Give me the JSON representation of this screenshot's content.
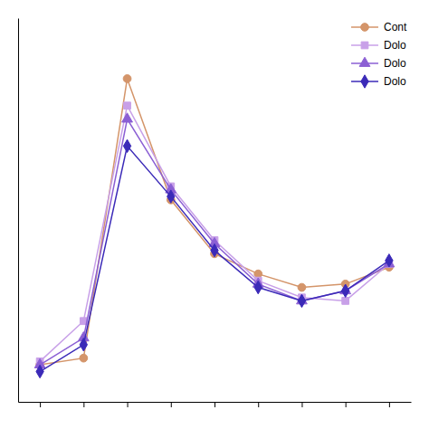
{
  "chart_data": {
    "type": "line",
    "x": [
      1,
      2,
      3,
      4,
      5,
      6,
      7,
      8,
      9
    ],
    "series": [
      {
        "name": "Cont",
        "color": "#D4956A",
        "marker": "circle",
        "values": [
          0.135,
          0.145,
          0.56,
          0.38,
          0.3,
          0.27,
          0.25,
          0.255,
          0.28
        ]
      },
      {
        "name": "Dolo",
        "color": "#C8A0E8",
        "marker": "square",
        "values": [
          0.14,
          0.2,
          0.52,
          0.4,
          0.32,
          0.26,
          0.235,
          0.23,
          0.285
        ]
      },
      {
        "name": "Dolo",
        "color": "#8B5FD4",
        "marker": "triangle",
        "values": [
          0.135,
          0.175,
          0.5,
          0.395,
          0.315,
          0.255,
          0.23,
          0.245,
          0.285
        ]
      },
      {
        "name": "Dolo",
        "color": "#3B2AB8",
        "marker": "diamond",
        "values": [
          0.125,
          0.165,
          0.46,
          0.385,
          0.305,
          0.25,
          0.23,
          0.245,
          0.29
        ]
      }
    ],
    "xlim": [
      0.5,
      9.5
    ],
    "ylim": [
      0.08,
      0.65
    ],
    "xticks": [
      1,
      2,
      3,
      4,
      5,
      6,
      7,
      8,
      9
    ],
    "yticks": [],
    "tick_labels": false,
    "legend": "upper right"
  }
}
